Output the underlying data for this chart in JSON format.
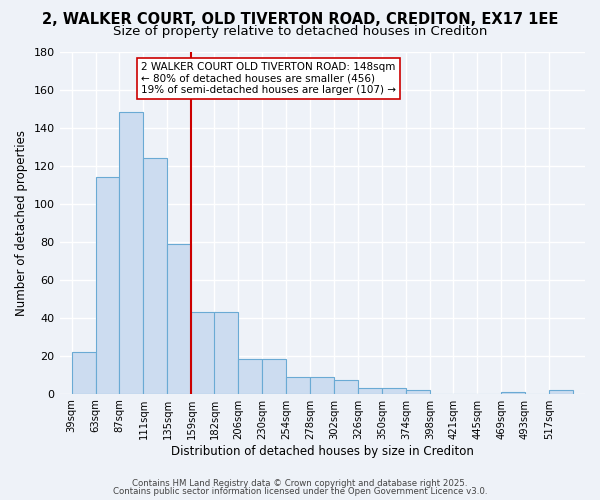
{
  "title": "2, WALKER COURT, OLD TIVERTON ROAD, CREDITON, EX17 1EE",
  "subtitle": "Size of property relative to detached houses in Crediton",
  "bar_values": [
    22,
    114,
    148,
    124,
    79,
    43,
    43,
    18,
    18,
    9,
    9,
    7,
    3,
    3,
    2,
    0,
    0,
    0,
    1,
    0,
    2
  ],
  "bin_labels": [
    "39sqm",
    "63sqm",
    "87sqm",
    "111sqm",
    "135sqm",
    "159sqm",
    "182sqm",
    "206sqm",
    "230sqm",
    "254sqm",
    "278sqm",
    "302sqm",
    "326sqm",
    "350sqm",
    "374sqm",
    "398sqm",
    "421sqm",
    "445sqm",
    "469sqm",
    "493sqm",
    "517sqm"
  ],
  "bin_edges": [
    39,
    63,
    87,
    111,
    135,
    159,
    182,
    206,
    230,
    254,
    278,
    302,
    326,
    350,
    374,
    398,
    421,
    445,
    469,
    493,
    517
  ],
  "bar_color": "#ccdcf0",
  "bar_edge_color": "#6aaad4",
  "vline_x": 159,
  "vline_color": "#cc0000",
  "ylabel": "Number of detached properties",
  "xlabel": "Distribution of detached houses by size in Crediton",
  "ylim": [
    0,
    180
  ],
  "yticks": [
    0,
    20,
    40,
    60,
    80,
    100,
    120,
    140,
    160,
    180
  ],
  "annotation_title": "2 WALKER COURT OLD TIVERTON ROAD: 148sqm",
  "annotation_line1": "← 80% of detached houses are smaller (456)",
  "annotation_line2": "19% of semi-detached houses are larger (107) →",
  "footer1": "Contains HM Land Registry data © Crown copyright and database right 2025.",
  "footer2": "Contains public sector information licensed under the Open Government Licence v3.0.",
  "background_color": "#eef2f8",
  "title_fontsize": 10.5,
  "subtitle_fontsize": 9.5
}
